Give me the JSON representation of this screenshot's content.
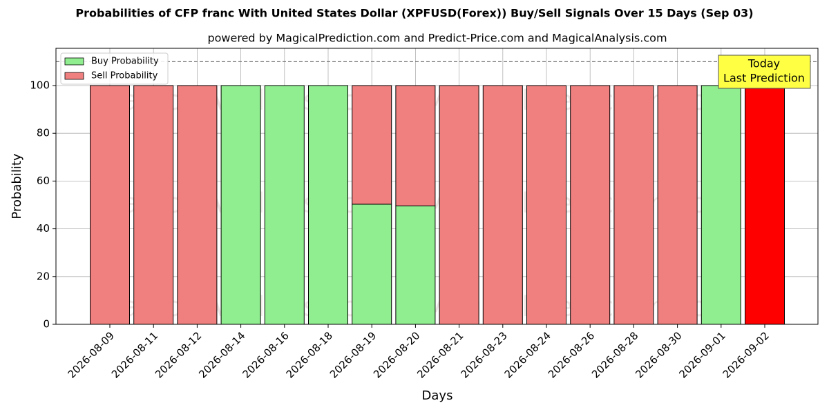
{
  "chart_data": {
    "type": "stacked_bar",
    "title": "Probabilities of CFP franc With United States Dollar (XPFUSD(Forex)) Buy/Sell Signals Over 15 Days (Sep 03)",
    "subtitle": "powered by MagicalPrediction.com and Predict-Price.com and MagicalAnalysis.com",
    "x_label": "Days",
    "y_label": "Probability",
    "categories": [
      "2026-08-09",
      "2026-08-11",
      "2026-08-12",
      "2026-08-14",
      "2026-08-16",
      "2026-08-18",
      "2026-08-19",
      "2026-08-20",
      "2026-08-21",
      "2026-08-23",
      "2026-08-24",
      "2026-08-26",
      "2026-08-28",
      "2026-08-30",
      "2026-09-01",
      "2026-09-02"
    ],
    "series": [
      {
        "name": "Buy Probability",
        "color": "#90ee90",
        "values": [
          0,
          0,
          0,
          100,
          100,
          100,
          50.3,
          49.6,
          0,
          0,
          0,
          0,
          0,
          0,
          100,
          0
        ]
      },
      {
        "name": "Sell Probability",
        "color": "#f08080",
        "colors": [
          "#f08080",
          "#f08080",
          "#f08080",
          "#f08080",
          "#f08080",
          "#f08080",
          "#f08080",
          "#f08080",
          "#f08080",
          "#f08080",
          "#f08080",
          "#f08080",
          "#f08080",
          "#f08080",
          "#f08080",
          "#ff0000"
        ],
        "values": [
          100,
          100,
          100,
          0,
          0,
          0,
          49.7,
          50.4,
          100,
          100,
          100,
          100,
          100,
          100,
          0,
          100
        ]
      }
    ],
    "ylim": [
      0,
      115.6
    ],
    "yticks": [
      0,
      20,
      40,
      60,
      80,
      100
    ],
    "grid": true,
    "legend": "upper left",
    "reference_line": 110,
    "annotation": [
      "Today",
      "Last Prediction"
    ],
    "annotation_color": "#ffff44",
    "watermarks": [
      "MagicalAnalysis.com",
      "MagicalPrediction.com"
    ]
  }
}
